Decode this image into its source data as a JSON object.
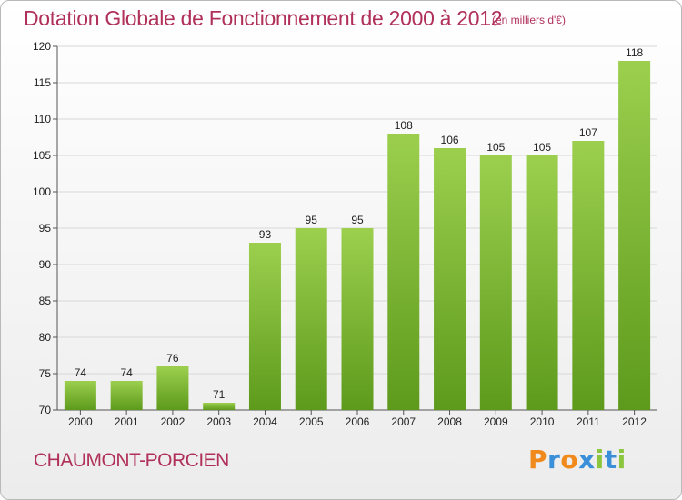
{
  "title": "Dotation Globale de Fonctionnement de 2000 à 2012",
  "subtitle": "(en milliers d'€)",
  "commune": "CHAUMONT-PORCIEN",
  "logo": {
    "letters": [
      "P",
      "r",
      "o",
      "x",
      "i",
      "t",
      "i"
    ],
    "colors": [
      "#f08a1c",
      "#3a8fd8",
      "#f08a1c",
      "#3a8fd8",
      "#8cc63f",
      "#3a8fd8",
      "#8cc63f"
    ]
  },
  "colors": {
    "bar_top": "#9ccf4e",
    "bar_bottom": "#5d9a1c",
    "title": "#b0305a"
  },
  "chart_data": {
    "type": "bar",
    "title": "Dotation Globale de Fonctionnement de 2000 à 2012",
    "subtitle": "(en milliers d'€)",
    "xlabel": "",
    "ylabel": "",
    "categories": [
      "2000",
      "2001",
      "2002",
      "2003",
      "2004",
      "2005",
      "2006",
      "2007",
      "2008",
      "2009",
      "2010",
      "2011",
      "2012"
    ],
    "values": [
      74,
      74,
      76,
      71,
      93,
      95,
      95,
      108,
      106,
      105,
      105,
      107,
      118
    ],
    "value_labels": [
      "74",
      "74",
      "76",
      "71",
      "93",
      "95",
      "95",
      "108",
      "106",
      "105",
      "105",
      "107",
      "118"
    ],
    "ylim": [
      70,
      120
    ],
    "yticks": [
      70,
      75,
      80,
      85,
      90,
      95,
      100,
      105,
      110,
      115,
      120
    ],
    "ytick_labels": [
      "70",
      "75",
      "80",
      "85",
      "90",
      "95",
      "100",
      "105",
      "110",
      "115",
      "120"
    ],
    "grid": true,
    "legend": "none"
  }
}
